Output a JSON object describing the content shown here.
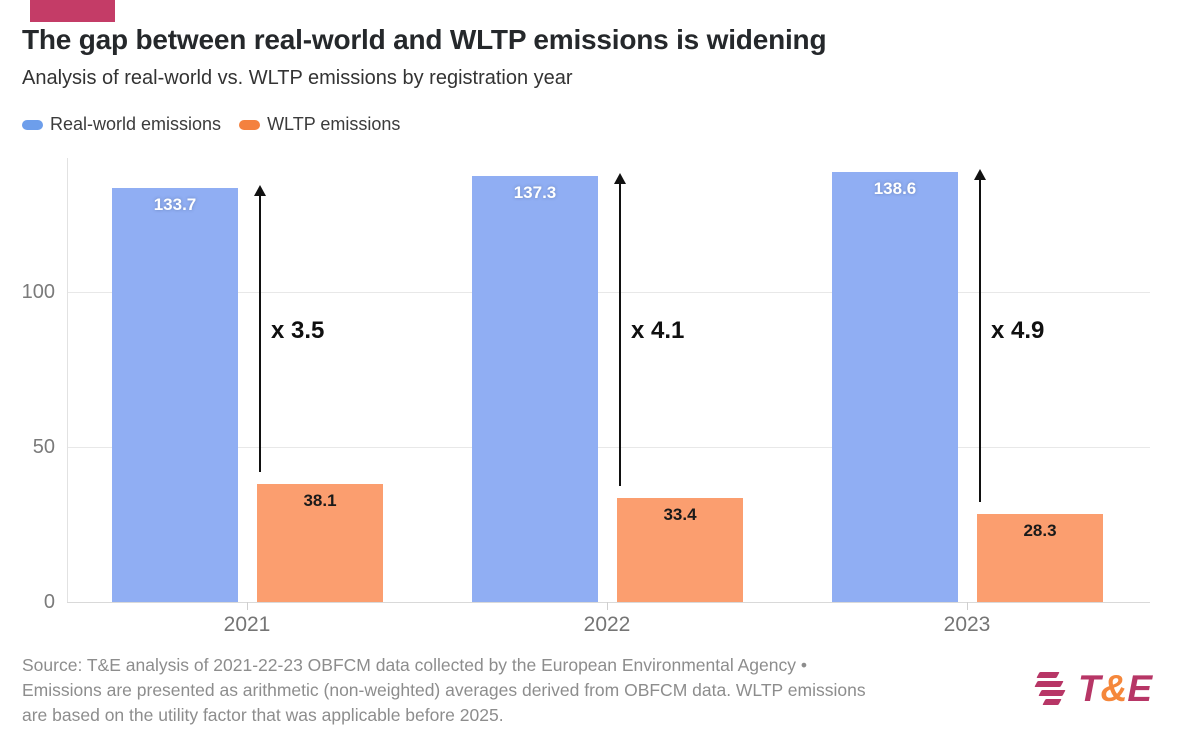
{
  "brand": {
    "accent_color": "#c43c67",
    "logo": {
      "t": "T",
      "amp": "&",
      "e": "E",
      "primary_color": "#b73666",
      "amp_color": "#f5873b"
    }
  },
  "header": {
    "title": "The gap between real-world and WLTP emissions is widening",
    "subtitle": "Analysis of real-world vs. WLTP emissions by registration year"
  },
  "legend": [
    {
      "label": "Real-world emissions",
      "color": "#6d9eeb"
    },
    {
      "label": "WLTP emissions",
      "color": "#f4813f"
    }
  ],
  "chart_data": {
    "type": "bar",
    "categories": [
      "2021",
      "2022",
      "2023"
    ],
    "series": [
      {
        "name": "Real-world emissions",
        "values": [
          133.7,
          137.3,
          138.6
        ],
        "bar_color": "#90aef3",
        "label_style": "on-blue"
      },
      {
        "name": "WLTP emissions",
        "values": [
          38.1,
          33.4,
          28.3
        ],
        "bar_color": "#fb9e6f",
        "label_style": "on-orange"
      }
    ],
    "gap_multipliers": [
      "x 3.5",
      "x 4.1",
      "x 4.9"
    ],
    "yticks": [
      0,
      50,
      100
    ],
    "ylim": [
      0,
      145
    ],
    "grid": "horizontal",
    "legend_position": "top-left",
    "title": "The gap between real-world and WLTP emissions is widening",
    "xlabel": "",
    "ylabel": ""
  },
  "footer": {
    "source_lines": [
      "Source: T&E analysis of 2021-22-23 OBFCM data collected by the European Environmental Agency •",
      "Emissions are presented as arithmetic (non-weighted) averages derived from OBFCM data. WLTP emissions",
      "are based on the utility factor that was applicable before 2025."
    ]
  }
}
